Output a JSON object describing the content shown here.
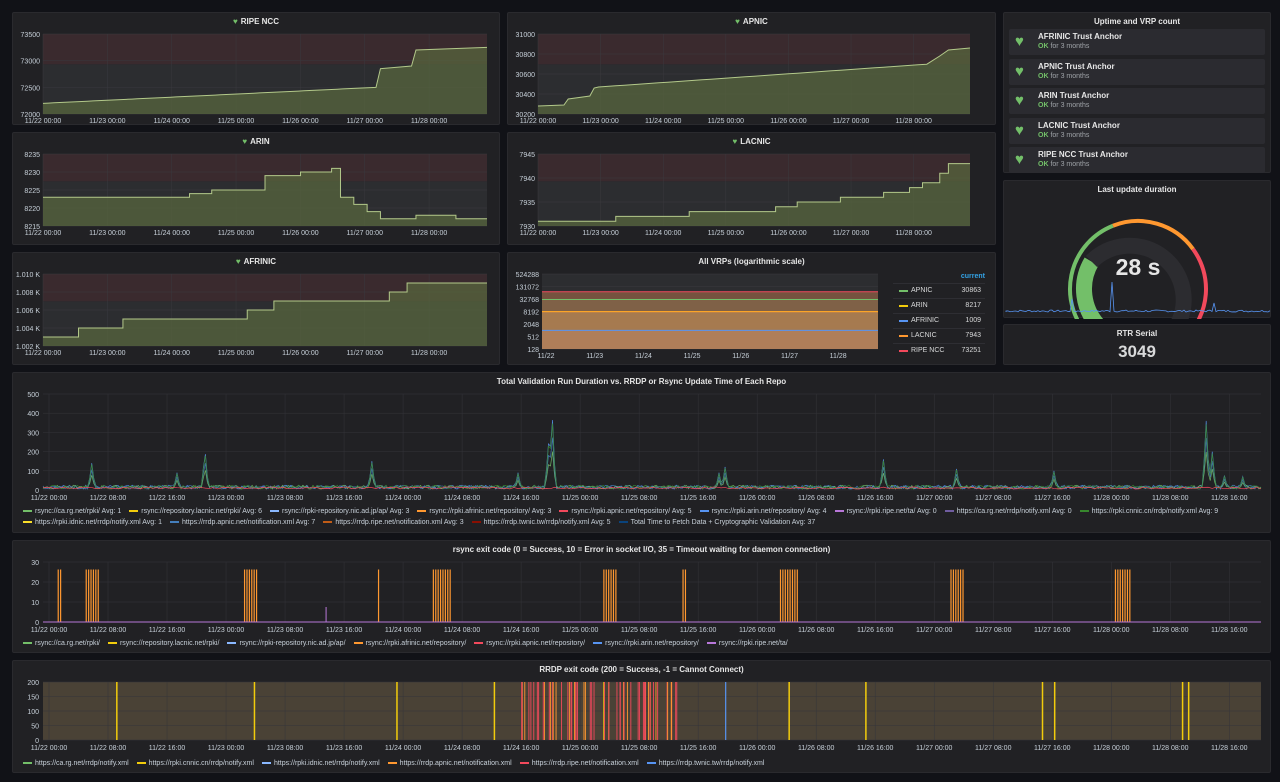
{
  "colors": {
    "green": "#73bf69",
    "yellow": "#f2cc0c",
    "blue": "#5794f2",
    "orange": "#ff9830",
    "red": "#f2495c",
    "purple": "#b877d9",
    "teal": "#8ab8ff"
  },
  "xaxis_days": [
    "11/22 00:00",
    "11/23 00:00",
    "11/24 00:00",
    "11/25 00:00",
    "11/26 00:00",
    "11/27 00:00",
    "11/28 00:00"
  ],
  "xaxis_halfdays": [
    "11/22 00:00",
    "11/22 08:00",
    "11/22 16:00",
    "11/23 00:00",
    "11/23 08:00",
    "11/23 16:00",
    "11/24 00:00",
    "11/24 08:00",
    "11/24 16:00",
    "11/25 00:00",
    "11/25 08:00",
    "11/25 16:00",
    "11/26 00:00",
    "11/26 08:00",
    "11/26 16:00",
    "11/27 00:00",
    "11/27 08:00",
    "11/27 16:00",
    "11/28 00:00",
    "11/28 08:00",
    "11/28 16:00"
  ],
  "panels": {
    "ripe": {
      "title": "RIPE NCC",
      "yticks": [
        "73500",
        "73000",
        "72500",
        "72000"
      ],
      "ylim": [
        72000,
        73500
      ]
    },
    "apnic": {
      "title": "APNIC",
      "yticks": [
        "31000",
        "30800",
        "30600",
        "30400",
        "30200"
      ],
      "ylim": [
        30200,
        31000
      ]
    },
    "arin": {
      "title": "ARIN",
      "yticks": [
        "8235",
        "8230",
        "8225",
        "8220",
        "8215"
      ],
      "ylim": [
        8215,
        8235
      ]
    },
    "lacnic": {
      "title": "LACNIC",
      "yticks": [
        "7945",
        "7940",
        "7935",
        "7930"
      ],
      "ylim": [
        7930,
        7945
      ]
    },
    "afrinic": {
      "title": "AFRINIC",
      "yticks": [
        "1.010 K",
        "1.008 K",
        "1.006 K",
        "1.004 K",
        "1.002 K"
      ],
      "ylim": [
        1002,
        1010
      ]
    }
  },
  "uptime": {
    "title": "Uptime and VRP count",
    "items": [
      {
        "name": "AFRINIC Trust Anchor",
        "status": "OK",
        "since": "for 3 months"
      },
      {
        "name": "APNIC Trust Anchor",
        "status": "OK",
        "since": "for 3 months"
      },
      {
        "name": "ARIN Trust Anchor",
        "status": "OK",
        "since": "for 3 months"
      },
      {
        "name": "LACNIC Trust Anchor",
        "status": "OK",
        "since": "for 3 months"
      },
      {
        "name": "RIPE NCC Trust Anchor",
        "status": "OK",
        "since": "for 3 months"
      }
    ]
  },
  "gauge": {
    "title": "Last update duration",
    "value": "28 s",
    "fraction": 0.28
  },
  "rtr": {
    "title": "RTR Serial",
    "value": "3049"
  },
  "vrps": {
    "title": "All VRPs (logarithmic scale)",
    "yticks": [
      "524288",
      "131072",
      "32768",
      "8192",
      "2048",
      "512",
      "128"
    ],
    "xticks": [
      "11/22",
      "11/23",
      "11/24",
      "11/25",
      "11/26",
      "11/27",
      "11/28"
    ],
    "legend_header": "current",
    "legend": [
      {
        "name": "APNIC",
        "value": "30863",
        "color": "#73bf69"
      },
      {
        "name": "ARIN",
        "value": "8217",
        "color": "#f2cc0c"
      },
      {
        "name": "AFRINIC",
        "value": "1009",
        "color": "#5794f2"
      },
      {
        "name": "LACNIC",
        "value": "7943",
        "color": "#ff9830"
      },
      {
        "name": "RIPE NCC",
        "value": "73251",
        "color": "#f2495c"
      }
    ]
  },
  "validation": {
    "title": "Total Validation Run Duration vs. RRDP or Rsync Update Time of Each Repo",
    "yticks": [
      "500",
      "400",
      "300",
      "200",
      "100",
      "0"
    ],
    "legend": [
      {
        "name": "rsync://ca.rg.net/rpki/",
        "avg": "Avg: 1",
        "color": "#73bf69"
      },
      {
        "name": "rsync://repository.lacnic.net/rpki/",
        "avg": "Avg: 6",
        "color": "#f2cc0c"
      },
      {
        "name": "rsync://rpki-repository.nic.ad.jp/ap/",
        "avg": "Avg: 3",
        "color": "#8ab8ff"
      },
      {
        "name": "rsync://rpki.afrinic.net/repository/",
        "avg": "Avg: 3",
        "color": "#ff9830"
      },
      {
        "name": "rsync://rpki.apnic.net/repository/",
        "avg": "Avg: 5",
        "color": "#f2495c"
      },
      {
        "name": "rsync://rpki.arin.net/repository/",
        "avg": "Avg: 4",
        "color": "#5794f2"
      },
      {
        "name": "rsync://rpki.ripe.net/ta/",
        "avg": "Avg: 0",
        "color": "#b877d9"
      },
      {
        "name": "https://ca.rg.net/rrdp/notify.xml",
        "avg": "Avg: 0",
        "color": "#705da0"
      },
      {
        "name": "https://rpki.cnnic.cn/rrdp/notify.xml",
        "avg": "Avg: 9",
        "color": "#37872d"
      },
      {
        "name": "https://rpki.idnic.net/rrdp/notify.xml",
        "avg": "Avg: 1",
        "color": "#fade2a"
      },
      {
        "name": "https://rrdp.apnic.net/notification.xml",
        "avg": "Avg: 7",
        "color": "#447ebc"
      },
      {
        "name": "https://rrdp.ripe.net/notification.xml",
        "avg": "Avg: 3",
        "color": "#c15c17"
      },
      {
        "name": "https://rrdp.twnic.tw/rrdp/notify.xml",
        "avg": "Avg: 5",
        "color": "#890f02"
      },
      {
        "name": "Total Time to Fetch Data + Cryptographic Validation",
        "avg": "Avg: 37",
        "color": "#0a437c"
      }
    ]
  },
  "rsync": {
    "title": "rsync exit code (0 = Success, 10 = Error in socket I/O, 35 = Timeout waiting for daemon connection)",
    "yticks": [
      "30",
      "20",
      "10",
      "0"
    ],
    "legend": [
      {
        "name": "rsync://ca.rg.net/rpki/",
        "color": "#73bf69"
      },
      {
        "name": "rsync://repository.lacnic.net/rpki/",
        "color": "#f2cc0c"
      },
      {
        "name": "rsync://rpki-repository.nic.ad.jp/ap/",
        "color": "#8ab8ff"
      },
      {
        "name": "rsync://rpki.afrinic.net/repository/",
        "color": "#ff9830"
      },
      {
        "name": "rsync://rpki.apnic.net/repository/",
        "color": "#f2495c"
      },
      {
        "name": "rsync://rpki.arin.net/repository/",
        "color": "#5794f2"
      },
      {
        "name": "rsync://rpki.ripe.net/ta/",
        "color": "#b877d9"
      }
    ]
  },
  "rrdp": {
    "title": "RRDP exit code (200 = Success, -1 = Cannot Connect)",
    "yticks": [
      "200",
      "150",
      "100",
      "50",
      "0"
    ],
    "legend": [
      {
        "name": "https://ca.rg.net/rrdp/notify.xml",
        "color": "#73bf69"
      },
      {
        "name": "https://rpki.cnnic.cn/rrdp/notify.xml",
        "color": "#f2cc0c"
      },
      {
        "name": "https://rpki.idnic.net/rrdp/notify.xml",
        "color": "#8ab8ff"
      },
      {
        "name": "https://rrdp.apnic.net/notification.xml",
        "color": "#ff9830"
      },
      {
        "name": "https://rrdp.ripe.net/notification.xml",
        "color": "#f2495c"
      },
      {
        "name": "https://rrdp.twnic.tw/rrdp/notify.xml",
        "color": "#5794f2"
      }
    ]
  }
}
